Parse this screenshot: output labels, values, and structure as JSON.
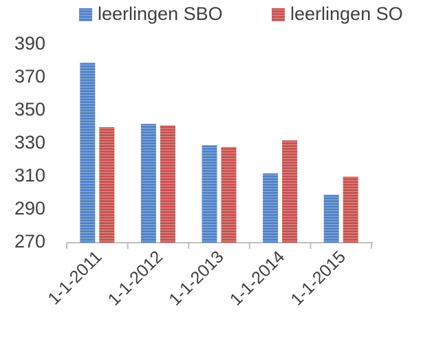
{
  "chart_data": {
    "type": "bar",
    "categories": [
      "1-1-2011",
      "1-1-2012",
      "1-1-2013",
      "1-1-2014",
      "1-1-2015"
    ],
    "series": [
      {
        "name": "leerlingen SBO",
        "color": "#4f81c8",
        "values": [
          379,
          342,
          329,
          312,
          299
        ]
      },
      {
        "name": "leerlingen SO",
        "color": "#c9504d",
        "values": [
          340,
          341,
          328,
          332,
          310
        ]
      }
    ],
    "ylim": [
      270,
      390
    ],
    "yticks": [
      270,
      290,
      310,
      330,
      350,
      370,
      390
    ],
    "grid": false,
    "legend": "top"
  }
}
